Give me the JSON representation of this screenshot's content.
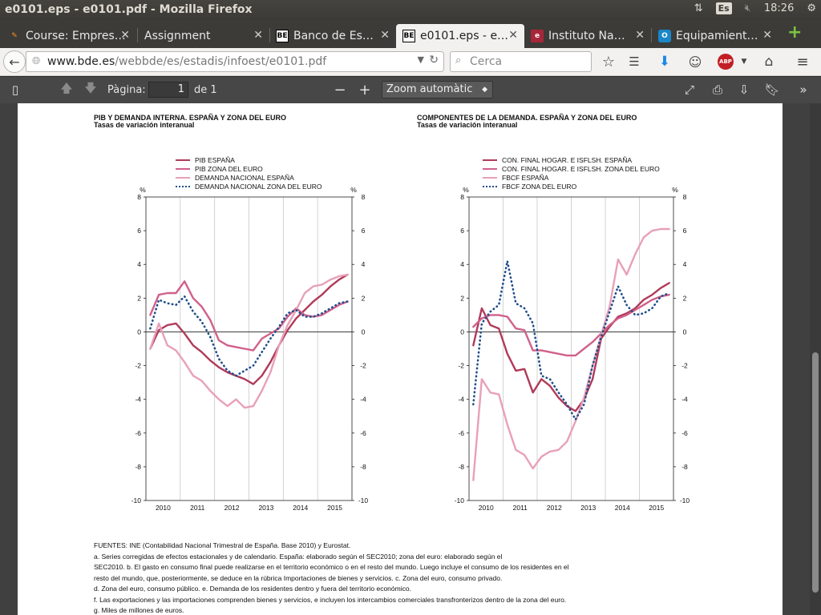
{
  "window": {
    "title": "e0101.eps - e0101.pdf - Mozilla Firefox",
    "keyboard_layout": "Es",
    "clock": "18:26"
  },
  "tabs": [
    {
      "label": "Course: Empres…",
      "favicon": "moodle-icon"
    },
    {
      "label": "Assignment",
      "favicon": ""
    },
    {
      "label": "Banco de Es…",
      "favicon": "BE"
    },
    {
      "label": "e0101.eps - e…",
      "favicon": "BE"
    },
    {
      "label": "Instituto Na…",
      "favicon": "ine-icon"
    },
    {
      "label": "Equipamient…",
      "favicon": "o-icon"
    }
  ],
  "navbar": {
    "url_host": "www.bde.es",
    "url_path": "/webbde/es/estadis/infoest/e0101.pdf",
    "search_placeholder": "Cerca"
  },
  "pdf_toolbar": {
    "page_label": "Pàgina:",
    "page_value": "1",
    "page_total": "de 1",
    "zoom": "Zoom automàtic"
  },
  "colors": {
    "dark_crimson": "#b03a5a",
    "rose": "#d0608a",
    "light_pink": "#e8a0b8",
    "dotted_blue": "#1f4e8c"
  },
  "chart_data": [
    {
      "type": "line",
      "title": "PIB Y DEMANDA INTERNA. ESPAÑA Y ZONA DEL EURO",
      "subtitle": "Tasas de variación interanual",
      "ylabel_left": "%",
      "ylabel_right": "%",
      "ylim": [
        -10,
        8
      ],
      "yticks": [
        -10,
        -8,
        -6,
        -4,
        -2,
        0,
        2,
        4,
        6,
        8
      ],
      "xlim": [
        2009.5,
        2015.5
      ],
      "xtick_labels": [
        "2010",
        "2011",
        "2012",
        "2013",
        "2014",
        "2015"
      ],
      "legend_position": "top",
      "series": [
        {
          "name": "PIB ESPAÑA",
          "color": "#b03a5a",
          "style": "solid",
          "x": [
            2009.5,
            2009.75,
            2010.0,
            2010.25,
            2010.5,
            2010.75,
            2011.0,
            2011.25,
            2011.5,
            2011.75,
            2012.0,
            2012.25,
            2012.5,
            2012.75,
            2013.0,
            2013.25,
            2013.5,
            2013.75,
            2014.0,
            2014.25,
            2014.5,
            2014.75,
            2015.0,
            2015.25
          ],
          "y": [
            -1.0,
            0.1,
            0.4,
            0.5,
            -0.1,
            -0.8,
            -1.2,
            -1.7,
            -2.1,
            -2.4,
            -2.6,
            -2.8,
            -3.1,
            -2.6,
            -1.8,
            -0.8,
            0.1,
            0.8,
            1.3,
            1.8,
            2.2,
            2.7,
            3.1,
            3.4
          ]
        },
        {
          "name": "PIB ZONA DEL EURO",
          "color": "#d0608a",
          "style": "solid",
          "x": [
            2009.5,
            2009.75,
            2010.0,
            2010.25,
            2010.5,
            2010.75,
            2011.0,
            2011.25,
            2011.5,
            2011.75,
            2012.0,
            2012.25,
            2012.5,
            2012.75,
            2013.0,
            2013.25,
            2013.5,
            2013.75,
            2014.0,
            2014.25,
            2014.5,
            2014.75,
            2015.0,
            2015.25
          ],
          "y": [
            1.0,
            2.2,
            2.3,
            2.3,
            3.0,
            2.0,
            1.5,
            0.7,
            -0.5,
            -0.8,
            -0.9,
            -1.0,
            -1.1,
            -0.4,
            -0.1,
            0.2,
            0.9,
            1.4,
            1.0,
            0.9,
            1.0,
            1.3,
            1.6,
            1.8
          ]
        },
        {
          "name": "DEMANDA NACIONAL ESPAÑA",
          "color": "#e8a0b8",
          "style": "solid",
          "x": [
            2009.5,
            2009.75,
            2010.0,
            2010.25,
            2010.5,
            2010.75,
            2011.0,
            2011.25,
            2011.5,
            2011.75,
            2012.0,
            2012.25,
            2012.5,
            2012.75,
            2013.0,
            2013.25,
            2013.5,
            2013.75,
            2014.0,
            2014.25,
            2014.5,
            2014.75,
            2015.0,
            2015.25
          ],
          "y": [
            -1.0,
            0.5,
            -0.8,
            -1.1,
            -1.8,
            -2.6,
            -2.9,
            -3.5,
            -4.0,
            -4.4,
            -4.0,
            -4.5,
            -4.4,
            -3.5,
            -2.4,
            -0.8,
            0.4,
            1.3,
            2.3,
            2.7,
            2.8,
            3.1,
            3.3,
            3.4
          ]
        },
        {
          "name": "DEMANDA NACIONAL ZONA DEL EURO",
          "color": "#1f4e8c",
          "style": "dotted",
          "x": [
            2009.5,
            2009.75,
            2010.0,
            2010.25,
            2010.5,
            2010.75,
            2011.0,
            2011.25,
            2011.5,
            2011.75,
            2012.0,
            2012.25,
            2012.5,
            2012.75,
            2013.0,
            2013.25,
            2013.5,
            2013.75,
            2014.0,
            2014.25,
            2014.5,
            2014.75,
            2015.0,
            2015.25
          ],
          "y": [
            0.2,
            1.9,
            1.7,
            1.6,
            2.1,
            1.2,
            0.6,
            -0.3,
            -1.6,
            -2.3,
            -2.6,
            -2.3,
            -2.0,
            -1.2,
            -0.4,
            0.3,
            1.1,
            1.3,
            0.9,
            0.9,
            1.1,
            1.4,
            1.7,
            1.8
          ]
        }
      ]
    },
    {
      "type": "line",
      "title": "COMPONENTES DE LA DEMANDA. ESPAÑA Y ZONA DEL EURO",
      "subtitle": "Tasas de variación interanual",
      "ylabel_left": "%",
      "ylabel_right": "%",
      "ylim": [
        -10,
        8
      ],
      "yticks": [
        -10,
        -8,
        -6,
        -4,
        -2,
        0,
        2,
        4,
        6,
        8
      ],
      "xlim": [
        2009.5,
        2015.5
      ],
      "xtick_labels": [
        "2010",
        "2011",
        "2012",
        "2013",
        "2014",
        "2015"
      ],
      "legend_position": "top",
      "series": [
        {
          "name": "CON. FINAL HOGAR. E ISFLSH. ESPAÑA",
          "color": "#b03a5a",
          "style": "solid",
          "x": [
            2009.5,
            2009.75,
            2010.0,
            2010.25,
            2010.5,
            2010.75,
            2011.0,
            2011.25,
            2011.5,
            2011.75,
            2012.0,
            2012.25,
            2012.5,
            2012.75,
            2013.0,
            2013.25,
            2013.5,
            2013.75,
            2014.0,
            2014.25,
            2014.5,
            2014.75,
            2015.0,
            2015.25
          ],
          "y": [
            -0.8,
            1.4,
            0.4,
            0.2,
            -1.3,
            -2.3,
            -2.2,
            -3.6,
            -2.8,
            -3.2,
            -3.9,
            -4.4,
            -4.7,
            -4.0,
            -2.8,
            -0.4,
            0.3,
            0.9,
            1.1,
            1.4,
            1.9,
            2.2,
            2.6,
            2.9
          ]
        },
        {
          "name": "CON. FINAL HOGAR. E ISFLSH. ZONA DEL EURO",
          "color": "#d0608a",
          "style": "solid",
          "x": [
            2009.5,
            2009.75,
            2010.0,
            2010.25,
            2010.5,
            2010.75,
            2011.0,
            2011.25,
            2011.5,
            2011.75,
            2012.0,
            2012.25,
            2012.5,
            2012.75,
            2013.0,
            2013.25,
            2013.5,
            2013.75,
            2014.0,
            2014.25,
            2014.5,
            2014.75,
            2015.0,
            2015.25
          ],
          "y": [
            0.3,
            0.8,
            1.0,
            1.0,
            0.9,
            0.2,
            0.1,
            -1.1,
            -1.1,
            -1.2,
            -1.3,
            -1.4,
            -1.4,
            -1.0,
            -0.6,
            -0.1,
            0.4,
            0.8,
            1.0,
            1.3,
            1.6,
            1.9,
            2.1,
            2.2
          ]
        },
        {
          "name": "FBCF ESPAÑA",
          "color": "#e8a0b8",
          "style": "solid",
          "x": [
            2009.5,
            2009.75,
            2010.0,
            2010.25,
            2010.5,
            2010.75,
            2011.0,
            2011.25,
            2011.5,
            2011.75,
            2012.0,
            2012.25,
            2012.5,
            2012.75,
            2013.0,
            2013.25,
            2013.5,
            2013.75,
            2014.0,
            2014.25,
            2014.5,
            2014.75,
            2015.0,
            2015.25
          ],
          "y": [
            -8.8,
            -2.8,
            -3.6,
            -3.7,
            -5.5,
            -7.0,
            -7.3,
            -8.1,
            -7.4,
            -7.1,
            -7.0,
            -6.5,
            -5.3,
            -3.9,
            -2.0,
            -0.2,
            1.5,
            4.3,
            3.4,
            4.6,
            5.6,
            6.0,
            6.1,
            6.1
          ]
        },
        {
          "name": "FBCF ZONA DEL EURO",
          "color": "#1f4e8c",
          "style": "dotted",
          "x": [
            2009.5,
            2009.75,
            2010.0,
            2010.25,
            2010.5,
            2010.75,
            2011.0,
            2011.25,
            2011.5,
            2011.75,
            2012.0,
            2012.25,
            2012.5,
            2012.75,
            2013.0,
            2013.25,
            2013.5,
            2013.75,
            2014.0,
            2014.25,
            2014.5,
            2014.75,
            2015.0,
            2015.25
          ],
          "y": [
            -4.3,
            0.5,
            1.2,
            1.6,
            4.2,
            1.7,
            1.4,
            0.5,
            -2.6,
            -2.8,
            -3.6,
            -4.3,
            -5.2,
            -4.3,
            -2.0,
            -0.3,
            1.2,
            2.7,
            1.6,
            1.0,
            1.1,
            1.4,
            2.1,
            2.3
          ]
        }
      ]
    }
  ],
  "footnotes": [
    "FUENTES: INE (Contabilidad Nacional Trimestral de España. Base 2010) y Eurostat.",
    "a. Series corregidas de efectos estacionales y de calendario. España: elaborado según el SEC2010; zona del euro: elaborado según el",
    "SEC2010.  b. El gasto en consumo final puede realizarse en el territorio económico o en el resto del mundo. Luego incluye el consumo de los residentes en el",
    "resto del mundo, que, posteriormente, se deduce en la rúbrica Importaciones de bienes y servicios.  c. Zona del euro, consumo privado.",
    "d. Zona del euro, consumo público.  e. Demanda de los residentes dentro y fuera del territorio económico.",
    "f. Las exportaciones y las importaciones comprenden bienes y servicios, e incluyen los intercambios comerciales transfronterizos dentro de la zona del euro.",
    "g. Miles de millones de euros."
  ]
}
